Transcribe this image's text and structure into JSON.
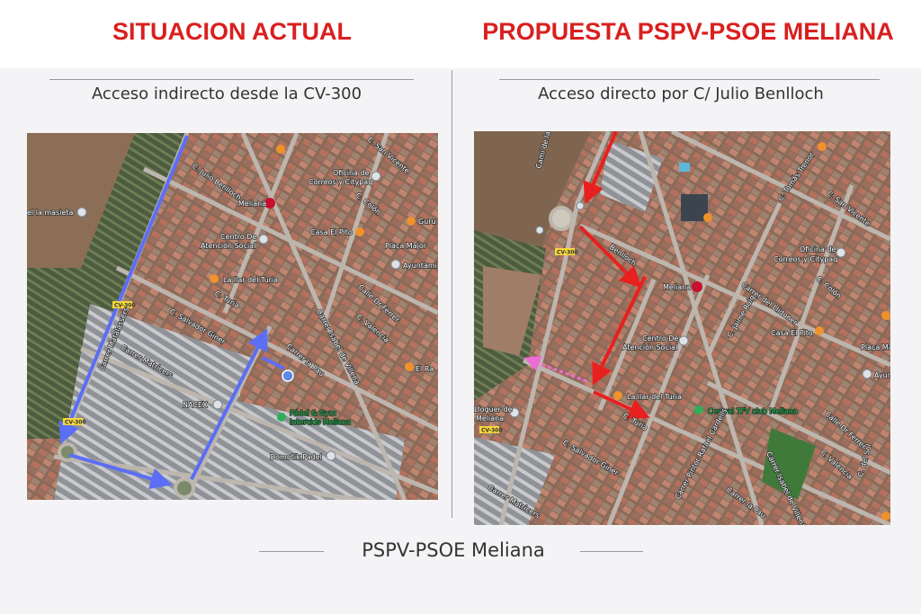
{
  "left": {
    "title": "SITUACION ACTUAL",
    "subtitle": "Acceso indirecto desde la CV-300",
    "route_color": "#5b6ef5",
    "labels": {
      "julio": "C. Julio Benlloch",
      "meliana": "Meliana",
      "oficina1": "Oficina de",
      "oficina2": "Correos y Citypaq",
      "colon": "C. Colón",
      "guru": "Guru",
      "pito": "Casa El Pito",
      "placa": "Plaça Major",
      "ajunt": "Ayuntami",
      "centro1": "Centro De",
      "centro2": "Atención Social",
      "llar": "La llar del Turia",
      "turia": "C. Turia",
      "giner": "C. Salvador Giner",
      "matalassers": "Carrer Matalassers",
      "matricers": "Carrer Matricers",
      "pau": "Carrer la Pau",
      "villena": "Carrer Isabel de Villena",
      "ferrer": "Calle Dr Ferrer",
      "valencia": "C. Valencia",
      "elra": "El Ra",
      "nacex": "NACEX",
      "padel1": "Pádel & Gym",
      "padel2": "Intercids Meliana",
      "domotik": "Domotik Padel",
      "masieta": "el la masieta",
      "sanvicente": "C. San Vicente",
      "cv1": "CV-300",
      "cv2": "CV-300"
    }
  },
  "right": {
    "title": "PROPUESTA PSPV-PSOE MELIANA",
    "subtitle": "Acceso directo por C/ Julio Benlloch",
    "route_color": "#e8201f",
    "alt_route_color": "#f06ad8",
    "labels": {
      "cami": "Camí de la C",
      "benlloch": "Benlloch",
      "cv1": "CV-300",
      "cv2": "CV-300",
      "meliana": "Meliana",
      "oficina1": "Oficina de",
      "oficina2": "Correos y Citypaq",
      "colon": "C. Colón",
      "trenor": "C. Tomás Trenor",
      "sanvicente": "C. San Vicente",
      "llidoner": "Carrer del Llidoner",
      "roig": "C. Jaime Roig",
      "pito": "Casa El Pito",
      "placa": "Plaça Ma",
      "ajunt": "Ayun",
      "centro1": "Centro De",
      "centro2": "Atención Social",
      "llar": "La llar del Turia",
      "central": "Central TFV club Meliana",
      "turia": "C. Turia",
      "ferrer": "Calle Dr Ferrer",
      "valencia": "C. Valencia",
      "sol": "C. del Sol",
      "giner": "C. Salvador Giner",
      "matricers": "Carrer Matricers",
      "pau": "Carrer la Pau",
      "villena": "Carrer Isabel de Villena",
      "cardells": "Carrer Pintor Rafael Cardells",
      "lloguer1": "Lloguer de",
      "lloguer2": "Meliana"
    }
  },
  "footer": "PSPV-PSOE Meliana"
}
